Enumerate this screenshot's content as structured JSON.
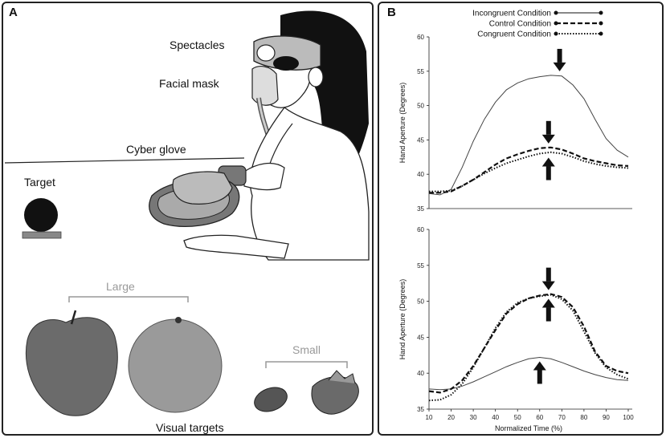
{
  "panel_a": {
    "label": "A",
    "spectacles": "Spectacles",
    "facial_mask": "Facial mask",
    "cyber_glove": "Cyber glove",
    "target": "Target",
    "large": "Large",
    "small": "Small",
    "visual_targets": "Visual targets"
  },
  "panel_b": {
    "label": "B"
  },
  "chart_data": [
    {
      "type": "line",
      "xlabel": "",
      "ylabel": "Hand Aperture (Degrees)",
      "ylim": [
        35,
        60
      ],
      "yticks": [
        35,
        40,
        45,
        50,
        55,
        60
      ],
      "legend": [
        "Incongruent Condition",
        "Control Condition",
        "Congruent Condition"
      ],
      "legend_position": "top-right",
      "x": [
        10,
        15,
        20,
        25,
        30,
        35,
        40,
        45,
        50,
        55,
        60,
        65,
        70,
        75,
        80,
        85,
        90,
        95,
        100
      ],
      "series": [
        {
          "name": "Incongruent Condition",
          "style": "solid",
          "values": [
            37.2,
            37.0,
            37.8,
            41.0,
            44.8,
            48.0,
            50.5,
            52.3,
            53.3,
            53.9,
            54.2,
            54.4,
            54.3,
            53.0,
            51.0,
            48.0,
            45.2,
            43.5,
            42.5
          ]
        },
        {
          "name": "Control Condition",
          "style": "dashed",
          "values": [
            37.3,
            37.3,
            37.5,
            38.3,
            39.2,
            40.3,
            41.4,
            42.3,
            42.9,
            43.4,
            43.8,
            43.9,
            43.6,
            43.0,
            42.3,
            41.9,
            41.6,
            41.3,
            41.2
          ]
        },
        {
          "name": "Congruent Condition",
          "style": "dotted",
          "values": [
            37.5,
            37.5,
            37.6,
            38.3,
            39.2,
            40.1,
            40.9,
            41.6,
            42.1,
            42.6,
            43.0,
            43.2,
            43.0,
            42.5,
            41.9,
            41.5,
            41.2,
            41.0,
            40.9
          ]
        }
      ],
      "arrows": [
        {
          "x": 69,
          "y": 54.4,
          "direction": "down"
        },
        {
          "x": 64,
          "y": 43.9,
          "direction": "down"
        },
        {
          "x": 64,
          "y": 43.0,
          "direction": "up"
        }
      ]
    },
    {
      "type": "line",
      "xlabel": "Normalized Time (%)",
      "ylabel": "Hand Aperture (Degrees)",
      "ylim": [
        35,
        60
      ],
      "xlim": [
        10,
        100
      ],
      "yticks": [
        35,
        40,
        45,
        50,
        55,
        60
      ],
      "xticks": [
        10,
        20,
        30,
        40,
        50,
        60,
        70,
        80,
        90,
        100
      ],
      "x": [
        10,
        15,
        20,
        25,
        30,
        35,
        40,
        45,
        50,
        55,
        60,
        65,
        70,
        75,
        80,
        85,
        90,
        95,
        100
      ],
      "series": [
        {
          "name": "Incongruent Condition",
          "style": "solid",
          "values": [
            37.8,
            37.7,
            37.8,
            38.2,
            38.8,
            39.5,
            40.2,
            40.9,
            41.5,
            42.0,
            42.2,
            42.0,
            41.5,
            40.9,
            40.3,
            39.8,
            39.4,
            39.1,
            39.0
          ]
        },
        {
          "name": "Control Condition",
          "style": "dashed",
          "values": [
            37.5,
            37.3,
            37.8,
            39.0,
            41.0,
            43.5,
            46.0,
            48.3,
            49.6,
            50.4,
            50.8,
            51.0,
            50.6,
            49.2,
            46.5,
            43.0,
            41.0,
            40.3,
            40.0
          ]
        },
        {
          "name": "Congruent Condition",
          "style": "dotted",
          "values": [
            36.2,
            36.3,
            37.0,
            38.5,
            40.8,
            43.5,
            46.3,
            48.5,
            49.8,
            50.4,
            50.7,
            50.9,
            50.3,
            48.7,
            45.8,
            42.8,
            40.8,
            39.8,
            39.2
          ]
        }
      ],
      "arrows": [
        {
          "x": 64,
          "y": 51.0,
          "direction": "down"
        },
        {
          "x": 64,
          "y": 50.9,
          "direction": "up"
        },
        {
          "x": 60,
          "y": 42.2,
          "direction": "up"
        }
      ]
    }
  ]
}
